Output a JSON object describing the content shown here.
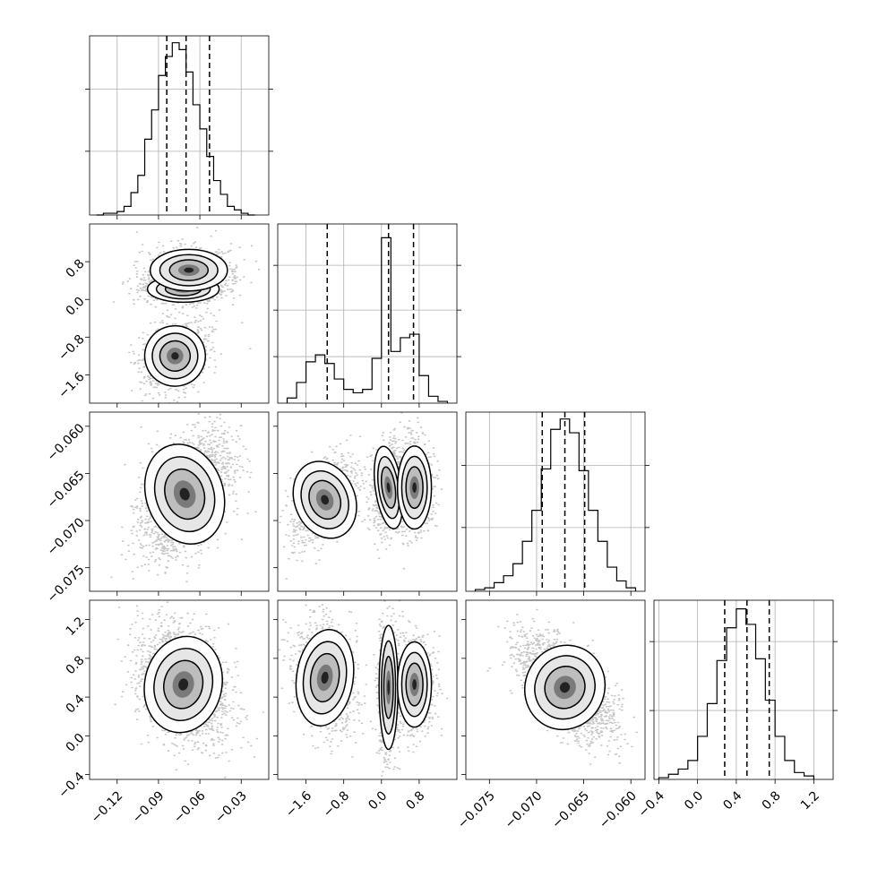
{
  "chart_data": {
    "type": "corner",
    "parameters": [
      {
        "range": [
          -0.14,
          -0.01
        ],
        "ticks": [
          -0.12,
          -0.09,
          -0.06,
          -0.03
        ],
        "tick_labels": [
          "−0.12",
          "−0.09",
          "−0.06",
          "−0.03"
        ],
        "quantiles": [
          -0.084,
          -0.07,
          -0.053
        ],
        "hist": {
          "bins": [
            -0.135,
            -0.13,
            -0.125,
            -0.12,
            -0.115,
            -0.11,
            -0.105,
            -0.1,
            -0.095,
            -0.09,
            -0.085,
            -0.08,
            -0.075,
            -0.07,
            -0.065,
            -0.06,
            -0.055,
            -0.05,
            -0.045,
            -0.04,
            -0.035,
            -0.03,
            -0.025,
            -0.02
          ],
          "counts": [
            0,
            0.01,
            0.01,
            0.02,
            0.05,
            0.13,
            0.23,
            0.44,
            0.61,
            0.81,
            0.92,
            1.0,
            0.96,
            0.83,
            0.64,
            0.5,
            0.34,
            0.2,
            0.12,
            0.05,
            0.03,
            0.01,
            0.0
          ]
        },
        "hist_gridlines": [
          0.37,
          0.73
        ]
      },
      {
        "range": [
          -2.2,
          1.6
        ],
        "ticks": [
          -1.6,
          -0.8,
          0.0,
          0.8
        ],
        "tick_labels": [
          "−1.6",
          "−0.8",
          "0.0",
          "0.8"
        ],
        "quantiles": [
          -1.15,
          0.15,
          0.68
        ],
        "hist": {
          "bins": [
            -2.0,
            -1.8,
            -1.6,
            -1.4,
            -1.2,
            -1.0,
            -0.8,
            -0.6,
            -0.4,
            -0.2,
            0.0,
            0.2,
            0.4,
            0.6,
            0.8,
            1.0,
            1.2,
            1.4
          ],
          "counts": [
            0.03,
            0.12,
            0.24,
            0.28,
            0.23,
            0.14,
            0.08,
            0.06,
            0.08,
            0.26,
            0.96,
            0.3,
            0.38,
            0.4,
            0.16,
            0.04,
            0.01
          ]
        },
        "hist_gridlines": [
          0.27,
          0.54,
          0.8
        ]
      },
      {
        "range": [
          -0.0775,
          -0.0585
        ],
        "ticks": [
          -0.075,
          -0.07,
          -0.065,
          -0.06
        ],
        "tick_labels": [
          "−0.075",
          "−0.070",
          "−0.065",
          "−0.060"
        ],
        "quantiles": [
          -0.0694,
          -0.067,
          -0.0649
        ],
        "hist": {
          "bins": [
            -0.0765,
            -0.0755,
            -0.0745,
            -0.0735,
            -0.0725,
            -0.0715,
            -0.0705,
            -0.0695,
            -0.0685,
            -0.0675,
            -0.0665,
            -0.0655,
            -0.0645,
            -0.0635,
            -0.0625,
            -0.0615,
            -0.0605,
            -0.0595
          ],
          "counts": [
            0.01,
            0.02,
            0.05,
            0.09,
            0.16,
            0.29,
            0.47,
            0.71,
            0.94,
            1.0,
            0.92,
            0.7,
            0.47,
            0.29,
            0.14,
            0.06,
            0.02
          ]
        },
        "hist_gridlines": [
          0.37,
          0.73
        ]
      },
      {
        "range": [
          -0.45,
          1.4
        ],
        "ticks": [
          -0.4,
          0.0,
          0.4,
          0.8,
          1.2
        ],
        "tick_labels": [
          "−0.4",
          "0.0",
          "0.4",
          "0.8",
          "1.2"
        ],
        "quantiles": [
          0.28,
          0.51,
          0.74
        ],
        "hist": {
          "bins": [
            -0.4,
            -0.3,
            -0.2,
            -0.1,
            0.0,
            0.1,
            0.2,
            0.3,
            0.4,
            0.5,
            0.6,
            0.7,
            0.8,
            0.9,
            1.0,
            1.1,
            1.2
          ],
          "counts": [
            0.01,
            0.03,
            0.06,
            0.11,
            0.25,
            0.44,
            0.69,
            0.88,
            0.99,
            0.9,
            0.7,
            0.46,
            0.25,
            0.11,
            0.04,
            0.02
          ]
        },
        "hist_gridlines": [
          0.4,
          0.8
        ]
      }
    ]
  }
}
